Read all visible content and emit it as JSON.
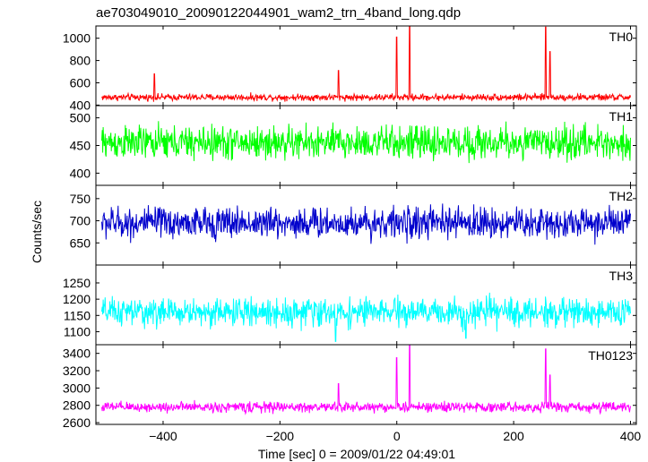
{
  "chart_data": {
    "type": "line",
    "title": "ae703049010_20090122044901_wam2_trn_4band_long.qdp",
    "xlabel": "Time [sec] 0 = 2009/01/22 04:49:01",
    "ylabel": "Counts/sec",
    "xlim": [
      -515,
      410
    ],
    "x_ticks": [
      -400,
      -200,
      0,
      200,
      400
    ],
    "x_tick_labels": [
      "−400",
      "−200",
      "0",
      "200",
      "400"
    ],
    "series": [
      {
        "name": "TH0",
        "color": "#ff0000",
        "ylim": [
          395,
          1110
        ],
        "y_ticks": [
          400,
          600,
          800,
          1000
        ],
        "baseline": 470,
        "noise": 28,
        "spikes": [
          [
            -415,
            680
          ],
          [
            -100,
            710
          ],
          [
            0,
            1010
          ],
          [
            22,
            1110
          ],
          [
            255,
            1100
          ],
          [
            262,
            880
          ]
        ],
        "dips": []
      },
      {
        "name": "TH1",
        "color": "#00ff00",
        "ylim": [
          378,
          522
        ],
        "y_ticks": [
          400,
          450,
          500
        ],
        "baseline": 455,
        "noise": 28,
        "spikes": [],
        "dips": []
      },
      {
        "name": "TH2",
        "color": "#0000cc",
        "ylim": [
          600,
          780
        ],
        "y_ticks": [
          650,
          700,
          750
        ],
        "baseline": 695,
        "noise": 33,
        "spikes": [],
        "dips": []
      },
      {
        "name": "TH3",
        "color": "#00ffff",
        "ylim": [
          1060,
          1305
        ],
        "y_ticks": [
          1100,
          1150,
          1200,
          1250
        ],
        "baseline": 1160,
        "noise": 40,
        "spikes": [],
        "dips": [
          [
            -105,
            1070
          ],
          [
            118,
            1080
          ]
        ]
      },
      {
        "name": "TH0123",
        "color": "#ff00ff",
        "ylim": [
          2580,
          3500
        ],
        "y_ticks": [
          2600,
          2800,
          3000,
          3200,
          3400
        ],
        "baseline": 2780,
        "noise": 55,
        "spikes": [
          [
            -100,
            3050
          ],
          [
            0,
            3350
          ],
          [
            22,
            3500
          ],
          [
            255,
            3450
          ],
          [
            262,
            3150
          ]
        ],
        "dips": []
      }
    ]
  }
}
